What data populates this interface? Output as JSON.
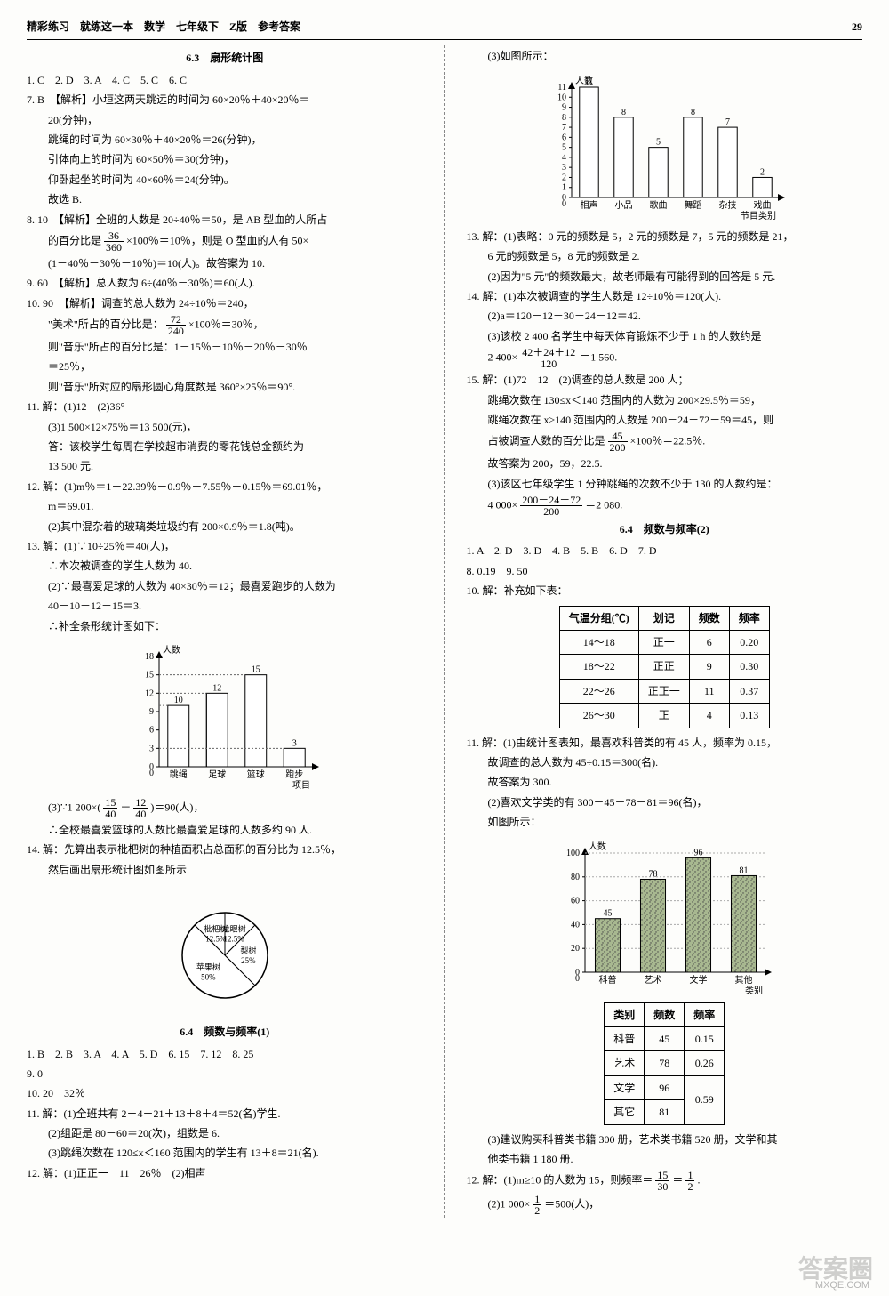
{
  "header": {
    "left": "精彩练习　就练这一本　数学　七年级下　Z版　参考答案",
    "page": "29"
  },
  "left": {
    "sec63_title": "6.3　扇形统计图",
    "q1": "1. C　2. D　3. A　4. C　5. C　6. C",
    "q7a": "7. B　【解析】小垣这两天跳远的时间为 60×20％＋40×20％＝",
    "q7b": "20(分钟)，",
    "q7c": "跳绳的时间为 60×30％＋40×20％＝26(分钟)，",
    "q7d": "引体向上的时间为 60×50％＝30(分钟)，",
    "q7e": "仰卧起坐的时间为 40×60％＝24(分钟)。",
    "q7f": "故选 B.",
    "q8a": "8. 10　【解析】全班的人数是 20÷40％＝50，是 AB 型血的人所占",
    "q8b_pre": "的百分比是",
    "q8b_frac_n": "36",
    "q8b_frac_d": "360",
    "q8b_post": "×100％＝10％，则是 O 型血的人有 50×",
    "q8c": "(1－40％－30％－10％)＝10(人)。故答案为 10.",
    "q9": "9. 60　【解析】总人数为 6÷(40％－30％)＝60(人).",
    "q10a": "10. 90　【解析】调查的总人数为 24÷10％＝240，",
    "q10b_pre": "\"美术\"所占的百分比是：",
    "q10b_frac_n": "72",
    "q10b_frac_d": "240",
    "q10b_post": "×100％＝30％，",
    "q10c": "则\"音乐\"所占的百分比是：1－15％－10％－20％－30％",
    "q10c2": "＝25％，",
    "q10d": "则\"音乐\"所对应的扇形圆心角度数是 360°×25％＝90°.",
    "q11a": "11. 解：(1)12　(2)36°",
    "q11b": "(3)1 500×12×75％＝13 500(元)，",
    "q11c": "答：该校学生每周在学校超市消费的零花钱总金额约为",
    "q11c2": "13 500 元.",
    "q12a": "12. 解：(1)m％＝1－22.39％－0.9％－7.55％－0.15％＝69.01％，",
    "q12a2": "m＝69.01.",
    "q12b": "(2)其中混杂着的玻璃类垃圾约有 200×0.9％＝1.8(吨)。",
    "q13a": "13. 解：(1)∵10÷25％＝40(人)，",
    "q13b": "∴本次被调查的学生人数为 40.",
    "q13c": "(2)∵最喜爱足球的人数为 40×30％＝12；最喜爱跑步的人数为",
    "q13c2": "40－10－12－15＝3.",
    "q13d": "∴补全条形统计图如下：",
    "chart1": {
      "ylabel": "人数",
      "xlabel": "项目",
      "categories": [
        "跳绳",
        "足球",
        "篮球",
        "跑步"
      ],
      "values": [
        10,
        12,
        15,
        3
      ],
      "ymax": 18,
      "ystep": 3,
      "hatched": [
        false,
        true,
        false,
        true
      ]
    },
    "q13e_pre": "(3)∵1 200×(",
    "q13e_f1n": "15",
    "q13e_f1d": "40",
    "q13e_mid": "－",
    "q13e_f2n": "12",
    "q13e_f2d": "40",
    "q13e_post": ")＝90(人)，",
    "q13f": "∴全校最喜爱篮球的人数比最喜爱足球的人数多约 90 人.",
    "q14a": "14. 解：先算出表示枇杷树的种植面积占总面积的百分比为 12.5％，",
    "q14b": "然后画出扇形统计图如图所示.",
    "pie": {
      "slices": [
        {
          "label": "枇杷树",
          "pct": "12.5%"
        },
        {
          "label": "龙眼树",
          "pct": "12.5%"
        },
        {
          "label": "梨树",
          "pct": "25%"
        },
        {
          "label": "苹果树",
          "pct": "50%"
        }
      ]
    },
    "sec64_title": "6.4　频数与频率(1)",
    "s64q1": "1. B　2. B　3. A　4. A　5. D　6. 15　7. 12　8. 25",
    "s64q9": "9. 0",
    "s64q10": "10. 20　32％",
    "s64q11a": "11. 解：(1)全班共有 2＋4＋21＋13＋8＋4＝52(名)学生.",
    "s64q11b": "(2)组距是 80－60＝20(次)，组数是 6.",
    "s64q11c": "(3)跳绳次数在 120≤x＜160 范围内的学生有 13＋8＝21(名).",
    "s64q12": "12. 解：(1)正正一　11　26％　(2)相声"
  },
  "right": {
    "r3": "(3)如图所示：",
    "chart2": {
      "ylabel": "人数",
      "xlabel": "节目类别",
      "categories": [
        "相声",
        "小品",
        "歌曲",
        "舞蹈",
        "杂技",
        "戏曲"
      ],
      "values": [
        11,
        8,
        5,
        8,
        7,
        2
      ],
      "ymax": 11,
      "ystep": 1
    },
    "r13a": "13. 解：(1)表略：0 元的频数是 5，2 元的频数是 7，5 元的频数是 21，",
    "r13a2": "6 元的频数是 5，8 元的频数是 2.",
    "r13b": "(2)因为\"5 元\"的频数最大，故老师最有可能得到的回答是 5 元.",
    "r14a": "14. 解：(1)本次被调查的学生人数是 12÷10％＝120(人).",
    "r14b": "(2)a＝120－12－30－24－12＝42.",
    "r14c": "(3)该校 2 400 名学生中每天体育锻炼不少于 1 h 的人数约是",
    "r14d_pre": "2 400×",
    "r14d_fn": "42＋24＋12",
    "r14d_fd": "120",
    "r14d_post": "＝1 560.",
    "r15a": "15. 解：(1)72　12　(2)调查的总人数是 200 人；",
    "r15b": "跳绳次数在 130≤x＜140 范围内的人数为 200×29.5％＝59，",
    "r15c": "跳绳次数在 x≥140 范围内的人数是 200－24－72－59＝45，则",
    "r15d_pre": "占被调查人数的百分比是",
    "r15d_fn": "45",
    "r15d_fd": "200",
    "r15d_post": "×100％＝22.5％.",
    "r15e": "故答案为 200，59，22.5.",
    "r15f": "(3)该区七年级学生 1 分钟跳绳的次数不少于 130 的人数约是：",
    "r15g_pre": "4 000×",
    "r15g_fn": "200－24－72",
    "r15g_fd": "200",
    "r15g_post": "＝2 080.",
    "sec642_title": "6.4　频数与频率(2)",
    "s2q1": "1. A　2. D　3. D　4. B　5. B　6. D　7. D",
    "s2q8": "8. 0.19　9. 50",
    "s2q10": "10. 解：补充如下表：",
    "table1": {
      "headers": [
        "气温分组(℃)",
        "划记",
        "频数",
        "频率"
      ],
      "rows": [
        [
          "14～18",
          "正一",
          "6",
          "0.20"
        ],
        [
          "18～22",
          "正正",
          "9",
          "0.30"
        ],
        [
          "22～26",
          "正正一",
          "11",
          "0.37"
        ],
        [
          "26～30",
          "正",
          "4",
          "0.13"
        ]
      ]
    },
    "s2q11a": "11. 解：(1)由统计图表知，最喜欢科普类的有 45 人，频率为 0.15，",
    "s2q11a2": "故调查的总人数为 45÷0.15＝300(名).",
    "s2q11a3": "故答案为 300.",
    "s2q11b": "(2)喜欢文学类的有 300－45－78－81＝96(名)，",
    "s2q11b2": "如图所示：",
    "chart3": {
      "ylabel": "人数",
      "xlabel": "类别",
      "categories": [
        "科普",
        "艺术",
        "文学",
        "其他"
      ],
      "values": [
        45,
        78,
        96,
        81
      ],
      "ymax": 100,
      "ystep": 20
    },
    "table2": {
      "headers": [
        "类别",
        "频数",
        "频率"
      ],
      "rows": [
        [
          "科普",
          "45",
          "0.15"
        ],
        [
          "艺术",
          "78",
          "0.26"
        ],
        [
          "文学",
          "96",
          ""
        ],
        [
          "其它",
          "81",
          "0.59"
        ]
      ],
      "merge_last": true
    },
    "s2q11c": "(3)建议购买科普类书籍 300 册，艺术类书籍 520 册，文学和其",
    "s2q11c2": "他类书籍 1 180 册.",
    "s2q12a_pre": "12. 解：(1)m≥10 的人数为 15，则频率＝",
    "s2q12a_f1n": "15",
    "s2q12a_f1d": "30",
    "s2q12a_mid": "＝",
    "s2q12a_f2n": "1",
    "s2q12a_f2d": "2",
    "s2q12a_post": ".",
    "s2q12b_pre": "(2)1 000×",
    "s2q12b_fn": "1",
    "s2q12b_fd": "2",
    "s2q12b_post": "＝500(人)，"
  },
  "watermark": "答案圈",
  "url": "MXQE.COM"
}
